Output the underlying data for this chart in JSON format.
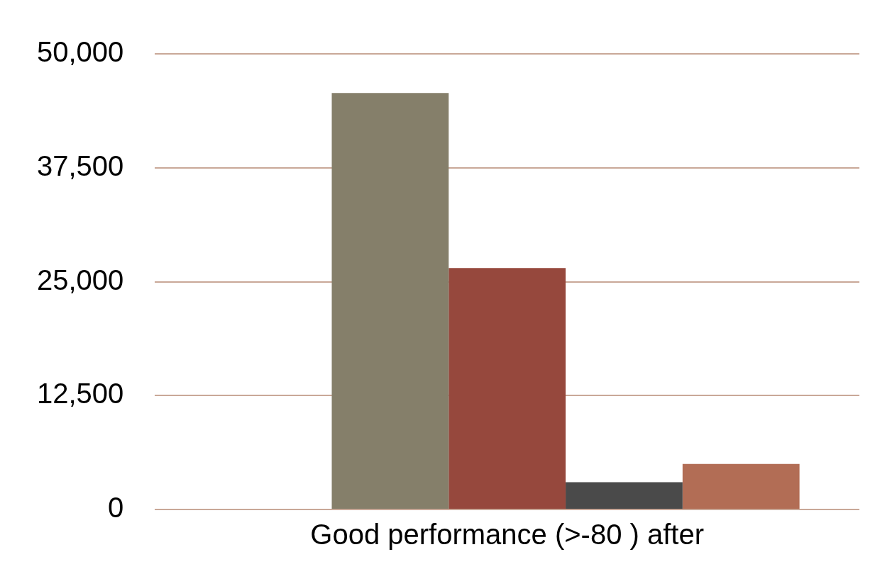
{
  "chart_data": {
    "type": "bar",
    "categories": [
      "Good performance (>-80 ) after"
    ],
    "series": [
      {
        "color": "#8a8a8a",
        "values": [
          null
        ]
      },
      {
        "color": "#857f6a",
        "values": [
          45700
        ]
      },
      {
        "color": "#96483d",
        "values": [
          26500
        ]
      },
      {
        "color": "#4a4a4a",
        "values": [
          3000
        ]
      },
      {
        "color": "#b26d55",
        "values": [
          5000
        ]
      }
    ],
    "ylim": [
      0,
      50000
    ],
    "yticks": [
      {
        "value": 0,
        "label": "0"
      },
      {
        "value": 12500,
        "label": "12,500"
      },
      {
        "value": 25000,
        "label": "25,000"
      },
      {
        "value": 37500,
        "label": "37,500"
      },
      {
        "value": 50000,
        "label": "50,000"
      }
    ],
    "grid": "y",
    "legend": false
  }
}
